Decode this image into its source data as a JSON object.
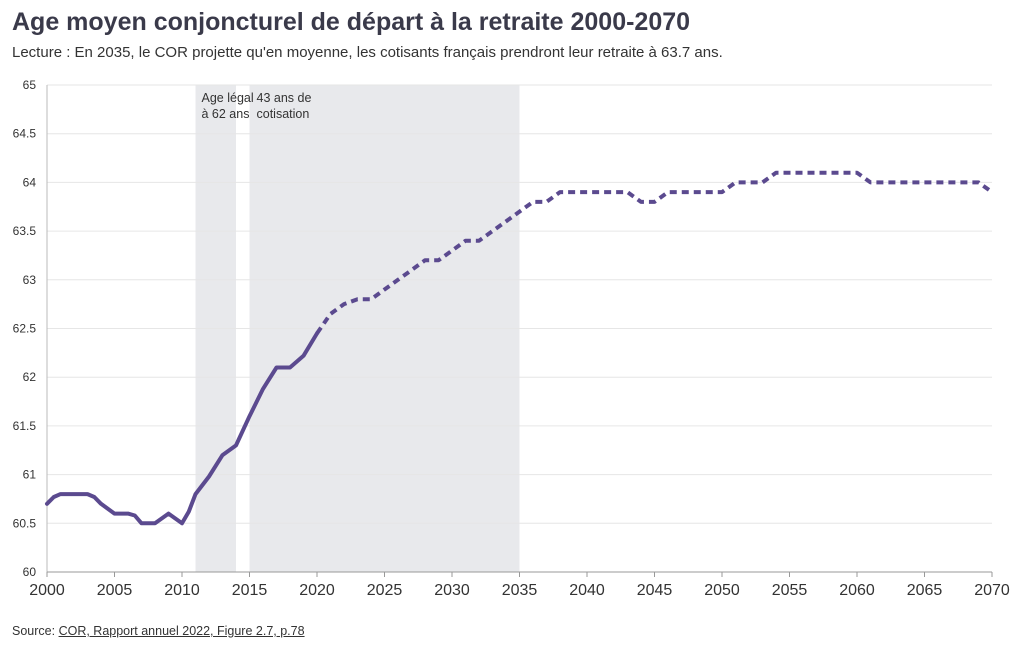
{
  "header": {
    "title": "Age moyen conjoncturel de départ à la retraite 2000-2070",
    "subtitle": "Lecture : En 2035, le COR projette qu'en moyenne, les cotisants français prendront leur retraite à 63.7 ans."
  },
  "footer": {
    "source_label": "Source: ",
    "source_link": "COR, Rapport annuel 2022, Figure 2.7, p.78"
  },
  "colors": {
    "line": "#5b4a8f",
    "band": "#e8e9ec",
    "grid": "#e6e6e6",
    "axis": "#333333"
  },
  "chart_data": {
    "type": "line",
    "title": "Age moyen conjoncturel de départ à la retraite 2000-2070",
    "xlabel": "",
    "ylabel": "",
    "xlim": [
      2000,
      2070
    ],
    "ylim": [
      60,
      65
    ],
    "grid": true,
    "x_ticks": [
      "2000",
      "2005",
      "2010",
      "2015",
      "2020",
      "2025",
      "2030",
      "2035",
      "2040",
      "2045",
      "2050",
      "2055",
      "2060",
      "2065",
      "2070"
    ],
    "y_ticks": [
      "60",
      "60.5",
      "61",
      "61.5",
      "62",
      "62.5",
      "63",
      "63.5",
      "64",
      "64.5",
      "65"
    ],
    "bands": [
      {
        "from": 2011,
        "to": 2014,
        "label_lines": [
          "Age légal",
          "à 62 ans"
        ]
      },
      {
        "from": 2015,
        "to": 2035,
        "label_lines": [
          "43 ans de",
          "cotisation"
        ]
      }
    ],
    "series": [
      {
        "style": "solid",
        "points": [
          [
            2000,
            60.7
          ],
          [
            2000.5,
            60.77
          ],
          [
            2001,
            60.8
          ],
          [
            2002,
            60.8
          ],
          [
            2003,
            60.8
          ],
          [
            2003.5,
            60.77
          ],
          [
            2004,
            60.7
          ],
          [
            2005,
            60.6
          ],
          [
            2006,
            60.6
          ],
          [
            2006.5,
            60.58
          ],
          [
            2007,
            60.5
          ],
          [
            2008,
            60.5
          ],
          [
            2009,
            60.6
          ],
          [
            2010,
            60.5
          ],
          [
            2010.5,
            60.62
          ],
          [
            2011,
            60.8
          ],
          [
            2012,
            60.98
          ],
          [
            2013,
            61.2
          ],
          [
            2014,
            61.3
          ],
          [
            2015,
            61.6
          ],
          [
            2016,
            61.88
          ],
          [
            2017,
            62.1
          ],
          [
            2018,
            62.1
          ],
          [
            2019,
            62.22
          ],
          [
            2020,
            62.45
          ]
        ]
      },
      {
        "style": "dashed",
        "points": [
          [
            2020,
            62.45
          ],
          [
            2021,
            62.65
          ],
          [
            2022,
            62.75
          ],
          [
            2023,
            62.8
          ],
          [
            2024,
            62.8
          ],
          [
            2025,
            62.9
          ],
          [
            2026,
            63.0
          ],
          [
            2027,
            63.1
          ],
          [
            2028,
            63.2
          ],
          [
            2029,
            63.2
          ],
          [
            2030,
            63.3
          ],
          [
            2031,
            63.4
          ],
          [
            2032,
            63.4
          ],
          [
            2033,
            63.5
          ],
          [
            2034,
            63.6
          ],
          [
            2035,
            63.7
          ],
          [
            2036,
            63.8
          ],
          [
            2037,
            63.8
          ],
          [
            2038,
            63.9
          ],
          [
            2039,
            63.9
          ],
          [
            2040,
            63.9
          ],
          [
            2041,
            63.9
          ],
          [
            2042,
            63.9
          ],
          [
            2043,
            63.9
          ],
          [
            2044,
            63.8
          ],
          [
            2045,
            63.8
          ],
          [
            2046,
            63.9
          ],
          [
            2047,
            63.9
          ],
          [
            2048,
            63.9
          ],
          [
            2049,
            63.9
          ],
          [
            2050,
            63.9
          ],
          [
            2051,
            64.0
          ],
          [
            2052,
            64.0
          ],
          [
            2053,
            64.0
          ],
          [
            2054,
            64.1
          ],
          [
            2055,
            64.1
          ],
          [
            2056,
            64.1
          ],
          [
            2057,
            64.1
          ],
          [
            2058,
            64.1
          ],
          [
            2059,
            64.1
          ],
          [
            2060,
            64.1
          ],
          [
            2061,
            64.0
          ],
          [
            2062,
            64.0
          ],
          [
            2063,
            64.0
          ],
          [
            2064,
            64.0
          ],
          [
            2065,
            64.0
          ],
          [
            2066,
            64.0
          ],
          [
            2067,
            64.0
          ],
          [
            2068,
            64.0
          ],
          [
            2069,
            64.0
          ],
          [
            2070,
            63.9
          ]
        ]
      }
    ]
  }
}
